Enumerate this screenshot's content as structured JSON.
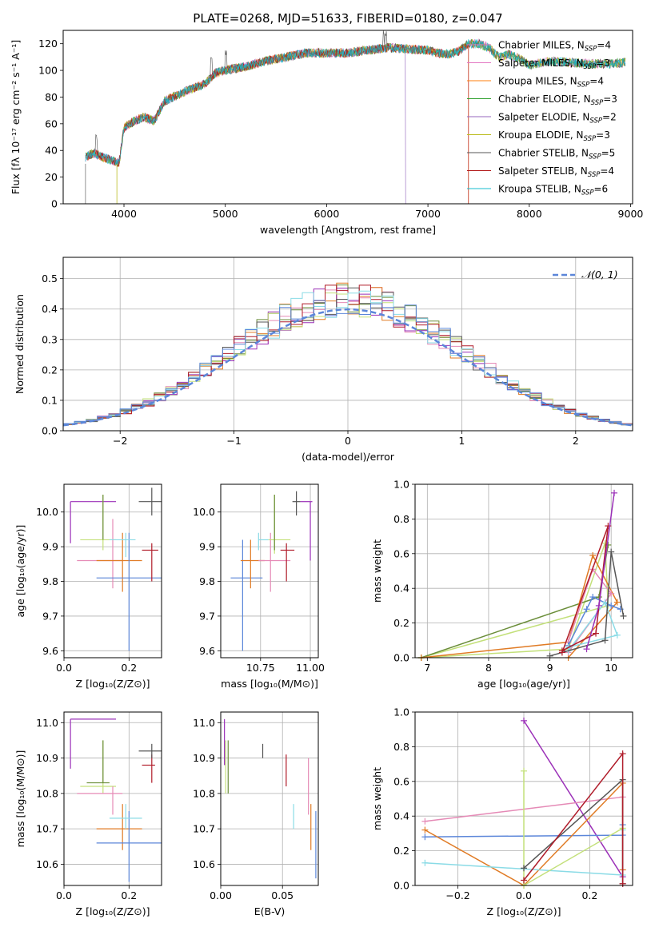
{
  "page_title": "PLATE=0268, MJD=51633, FIBERID=0180, z=0.047",
  "colors": {
    "chabrier_miles": "#e377c2",
    "salpeter_miles": "#e377c2",
    "kroupa_miles": "#ff7f0e",
    "chabrier_elodie": "#2ca02c",
    "salpeter_elodie": "#9467bd",
    "kroupa_elodie": "#bcbd22",
    "chabrier_stelib": "#555555",
    "salpeter_stelib": "#b21a1a",
    "kroupa_stelib": "#17becf",
    "ssp_purple": "#9b30b8",
    "ssp_blue": "#5b86d9",
    "ssp_orange": "#e07b25",
    "ssp_pink": "#e58ab6",
    "ssp_lime": "#c3e07a",
    "ssp_red": "#b01c2a",
    "ssp_cyan": "#8adbe6",
    "ssp_gray": "#555555",
    "ssp_olive": "#6b8e3a",
    "normal": "#5b86d9"
  },
  "chart_data": [
    {
      "id": "spectrum",
      "type": "line",
      "title": "PLATE=0268, MJD=51633, FIBERID=0180, z=0.047",
      "xlabel": "wavelength [Angstrom, rest frame]",
      "ylabel": "Flux [fλ 10⁻¹⁷ erg cm⁻² s⁻¹ A⁻¹]",
      "xlim": [
        3400,
        9020
      ],
      "ylim": [
        0,
        130
      ],
      "xticks": [
        "4000",
        "5000",
        "6000",
        "7000",
        "8000",
        "9000"
      ],
      "yticks": [
        "0",
        "20",
        "40",
        "60",
        "80",
        "100",
        "120"
      ],
      "legend_position": "top-right",
      "legend": [
        "Chabrier MILES, N_SSP=4",
        "Salpeter MILES, N_SSP=3",
        "Kroupa MILES, N_SSP=4",
        "Chabrier ELODIE, N_SSP=3",
        "Salpeter ELODIE, N_SSP=2",
        "Kroupa ELODIE, N_SSP=3",
        "Chabrier STELIB, N_SSP=5",
        "Salpeter STELIB, N_SSP=4",
        "Kroupa STELIB, N_SSP=6"
      ],
      "legend_keys": [
        "chabrier_miles",
        "salpeter_miles",
        "kroupa_miles",
        "chabrier_elodie",
        "salpeter_elodie",
        "kroupa_elodie",
        "chabrier_stelib",
        "salpeter_stelib",
        "kroupa_stelib"
      ],
      "continuum": [
        [
          3620,
          35
        ],
        [
          3700,
          38
        ],
        [
          3800,
          35
        ],
        [
          3900,
          32
        ],
        [
          3950,
          30
        ],
        [
          4000,
          57
        ],
        [
          4100,
          62
        ],
        [
          4200,
          65
        ],
        [
          4300,
          62
        ],
        [
          4400,
          77
        ],
        [
          4600,
          84
        ],
        [
          4800,
          90
        ],
        [
          4900,
          98
        ],
        [
          5000,
          100
        ],
        [
          5200,
          103
        ],
        [
          5400,
          107
        ],
        [
          5600,
          110
        ],
        [
          5800,
          113
        ],
        [
          6000,
          113
        ],
        [
          6200,
          113
        ],
        [
          6400,
          115
        ],
        [
          6600,
          117
        ],
        [
          6800,
          116
        ],
        [
          7000,
          115
        ],
        [
          7100,
          113
        ],
        [
          7200,
          112
        ],
        [
          7300,
          114
        ],
        [
          7400,
          120
        ],
        [
          7500,
          120
        ],
        [
          7600,
          117
        ],
        [
          7700,
          110
        ],
        [
          7800,
          112
        ],
        [
          7900,
          109
        ],
        [
          8000,
          104
        ],
        [
          8200,
          107
        ],
        [
          8400,
          106
        ],
        [
          8600,
          105
        ],
        [
          8800,
          105
        ],
        [
          8950,
          106
        ]
      ]
    },
    {
      "id": "residuals",
      "type": "bar",
      "xlabel": "(data-model)/error",
      "ylabel": "Normed distribution",
      "xlim": [
        -2.5,
        2.5
      ],
      "ylim": [
        0,
        0.57
      ],
      "xticks": [
        "−2",
        "−1",
        "0",
        "1",
        "2"
      ],
      "yticks": [
        "0.0",
        "0.1",
        "0.2",
        "0.3",
        "0.4",
        "0.5"
      ],
      "legend": "𝒩(0, 1)",
      "legend_position": "top-right",
      "bin_width": 0.1
    },
    {
      "id": "z_age",
      "type": "scatter",
      "xlabel": "Z [log₁₀(Z/Z⊙)]",
      "ylabel": "age  [log₁₀(age/yr)]",
      "xlim": [
        0,
        0.3
      ],
      "ylim": [
        9.58,
        10.08
      ],
      "xticks": [
        "0.0",
        "0.2"
      ],
      "yticks": [
        "9.6",
        "9.7",
        "9.8",
        "9.9",
        "10.0"
      ],
      "points": [
        {
          "c": "ssp_purple",
          "x": 0.02,
          "y": 10.03,
          "x0": 0.02,
          "x1": 0.16,
          "y0": 9.91,
          "y1": 10.03
        },
        {
          "c": "ssp_lime",
          "x": 0.12,
          "y": 9.92,
          "x0": 0.05,
          "x1": 0.16,
          "y0": 9.89,
          "y1": 10.05
        },
        {
          "c": "ssp_olive",
          "x": 0.12,
          "y": 9.96,
          "x0": 0.12,
          "x1": 0.12,
          "y0": 9.92,
          "y1": 10.05
        },
        {
          "c": "ssp_pink",
          "x": 0.15,
          "y": 9.86,
          "x0": 0.04,
          "x1": 0.18,
          "y0": 9.78,
          "y1": 9.98
        },
        {
          "c": "ssp_orange",
          "x": 0.18,
          "y": 9.86,
          "x0": 0.1,
          "x1": 0.24,
          "y0": 9.77,
          "y1": 9.94
        },
        {
          "c": "ssp_blue",
          "x": 0.2,
          "y": 9.81,
          "x0": 0.1,
          "x1": 0.3,
          "y0": 9.6,
          "y1": 9.94
        },
        {
          "c": "ssp_cyan",
          "x": 0.19,
          "y": 9.92,
          "x0": 0.14,
          "x1": 0.22,
          "y0": 9.87,
          "y1": 9.94
        },
        {
          "c": "ssp_red",
          "x": 0.27,
          "y": 9.89,
          "x0": 0.24,
          "x1": 0.29,
          "y0": 9.8,
          "y1": 9.91
        },
        {
          "c": "ssp_gray",
          "x": 0.27,
          "y": 10.03,
          "x0": 0.23,
          "x1": 0.3,
          "y0": 9.99,
          "y1": 10.07
        }
      ]
    },
    {
      "id": "mass_age",
      "type": "scatter",
      "xlabel": "mass [log₁₀(M/M⊙)]",
      "ylabel": "",
      "xlim": [
        10.55,
        11.04
      ],
      "ylim": [
        9.58,
        10.08
      ],
      "xticks": [
        "10.75",
        "11.00"
      ],
      "yticks": [
        "9.6",
        "9.7",
        "9.8",
        "9.9",
        "10.0"
      ],
      "points": [
        {
          "c": "ssp_blue",
          "x": 10.66,
          "y": 9.81,
          "x0": 10.6,
          "x1": 10.76,
          "y0": 9.6,
          "y1": 9.92
        },
        {
          "c": "ssp_orange",
          "x": 10.7,
          "y": 9.86,
          "x0": 10.65,
          "x1": 10.77,
          "y0": 9.78,
          "y1": 9.92
        },
        {
          "c": "ssp_pink",
          "x": 10.8,
          "y": 9.86,
          "x0": 10.74,
          "x1": 10.9,
          "y0": 9.77,
          "y1": 9.94
        },
        {
          "c": "ssp_cyan",
          "x": 10.74,
          "y": 9.92,
          "x0": 10.74,
          "x1": 10.79,
          "y0": 9.89,
          "y1": 9.94
        },
        {
          "c": "ssp_lime",
          "x": 10.82,
          "y": 9.92,
          "x0": 10.79,
          "x1": 10.9,
          "y0": 9.88,
          "y1": 10.05
        },
        {
          "c": "ssp_olive",
          "x": 10.82,
          "y": 9.97,
          "x0": 10.82,
          "x1": 10.82,
          "y0": 9.89,
          "y1": 10.05
        },
        {
          "c": "ssp_red",
          "x": 10.88,
          "y": 9.89,
          "x0": 10.85,
          "x1": 10.92,
          "y0": 9.8,
          "y1": 9.91
        },
        {
          "c": "ssp_gray",
          "x": 10.93,
          "y": 10.03,
          "x0": 10.91,
          "x1": 10.95,
          "y0": 9.99,
          "y1": 10.06
        },
        {
          "c": "ssp_purple",
          "x": 11.0,
          "y": 10.03,
          "x0": 10.95,
          "x1": 11.01,
          "y0": 9.86,
          "y1": 10.03
        }
      ]
    },
    {
      "id": "age_weight",
      "type": "line",
      "xlabel": "age  [log₁₀(age/yr)]",
      "ylabel": "mass weight",
      "xlim": [
        6.8,
        10.35
      ],
      "ylim": [
        0,
        1.0
      ],
      "xticks": [
        "7",
        "8",
        "9",
        "10"
      ],
      "yticks": [
        "0.0",
        "0.2",
        "0.4",
        "0.6",
        "0.8",
        "1.0"
      ],
      "series": [
        {
          "c": "ssp_lime",
          "points": [
            [
              6.9,
              0.0
            ],
            [
              9.3,
              0.05
            ],
            [
              9.9,
              0.66
            ],
            [
              9.95,
              0.3
            ],
            [
              6.9,
              0.0
            ]
          ]
        },
        {
          "c": "ssp_olive",
          "points": [
            [
              6.9,
              0.0
            ],
            [
              9.8,
              0.35
            ],
            [
              9.95,
              0.65
            ]
          ]
        },
        {
          "c": "ssp_orange",
          "points": [
            [
              6.9,
              0.0
            ],
            [
              9.3,
              0.09
            ],
            [
              9.7,
              0.59
            ],
            [
              10.1,
              0.32
            ],
            [
              9.3,
              0.0
            ]
          ]
        },
        {
          "c": "ssp_pink",
          "points": [
            [
              9.3,
              0.09
            ],
            [
              9.7,
              0.51
            ],
            [
              10.0,
              0.37
            ],
            [
              9.3,
              0.03
            ]
          ]
        },
        {
          "c": "ssp_blue",
          "points": [
            [
              9.3,
              0.07
            ],
            [
              9.6,
              0.28
            ],
            [
              9.7,
              0.35
            ],
            [
              10.0,
              0.3
            ],
            [
              10.15,
              0.28
            ]
          ]
        },
        {
          "c": "ssp_cyan",
          "points": [
            [
              9.3,
              0.04
            ],
            [
              9.9,
              0.32
            ],
            [
              10.1,
              0.13
            ],
            [
              9.3,
              0.06
            ]
          ]
        },
        {
          "c": "ssp_gray",
          "points": [
            [
              9.0,
              0.01
            ],
            [
              9.9,
              0.1
            ],
            [
              10.0,
              0.61
            ],
            [
              10.2,
              0.24
            ]
          ]
        },
        {
          "c": "ssp_red",
          "points": [
            [
              9.2,
              0.04
            ],
            [
              9.75,
              0.14
            ],
            [
              9.95,
              0.76
            ],
            [
              9.2,
              0.03
            ]
          ]
        },
        {
          "c": "ssp_purple",
          "points": [
            [
              9.6,
              0.05
            ],
            [
              9.8,
              0.3
            ],
            [
              10.05,
              0.95
            ]
          ]
        }
      ]
    },
    {
      "id": "z_mass",
      "type": "scatter",
      "xlabel": "Z [log₁₀(Z/Z⊙)]",
      "ylabel": "mass [log₁₀(M/M⊙)]",
      "xlim": [
        0,
        0.3
      ],
      "ylim": [
        10.54,
        11.03
      ],
      "xticks": [
        "0.0",
        "0.2"
      ],
      "yticks": [
        "10.6",
        "10.7",
        "10.8",
        "10.9",
        "11.0"
      ],
      "points": [
        {
          "c": "ssp_purple",
          "x": 0.02,
          "y": 11.01,
          "x0": 0.02,
          "x1": 0.16,
          "y0": 10.87,
          "y1": 11.01
        },
        {
          "c": "ssp_lime",
          "x": 0.12,
          "y": 10.82,
          "x0": 0.05,
          "x1": 0.16,
          "y0": 10.8,
          "y1": 10.95
        },
        {
          "c": "ssp_olive",
          "x": 0.12,
          "y": 10.83,
          "x0": 0.07,
          "x1": 0.14,
          "y0": 10.83,
          "y1": 10.95
        },
        {
          "c": "ssp_pink",
          "x": 0.15,
          "y": 10.8,
          "x0": 0.04,
          "x1": 0.18,
          "y0": 10.74,
          "y1": 10.82
        },
        {
          "c": "ssp_orange",
          "x": 0.18,
          "y": 10.7,
          "x0": 0.1,
          "x1": 0.24,
          "y0": 10.64,
          "y1": 10.77
        },
        {
          "c": "ssp_blue",
          "x": 0.2,
          "y": 10.66,
          "x0": 0.1,
          "x1": 0.3,
          "y0": 10.55,
          "y1": 10.75
        },
        {
          "c": "ssp_cyan",
          "x": 0.19,
          "y": 10.73,
          "x0": 0.14,
          "x1": 0.24,
          "y0": 10.7,
          "y1": 10.77
        },
        {
          "c": "ssp_red",
          "x": 0.27,
          "y": 10.88,
          "x0": 0.24,
          "x1": 0.28,
          "y0": 10.83,
          "y1": 10.91
        },
        {
          "c": "ssp_gray",
          "x": 0.27,
          "y": 10.92,
          "x0": 0.23,
          "x1": 0.3,
          "y0": 10.9,
          "y1": 10.94
        }
      ]
    },
    {
      "id": "ebv_mass",
      "type": "scatter",
      "xlabel": "E(B-V)",
      "ylabel": "",
      "xlim": [
        0,
        0.079
      ],
      "ylim": [
        10.54,
        11.03
      ],
      "xticks": [
        "0.00",
        "0.05"
      ],
      "yticks": [
        "10.6",
        "10.7",
        "10.8",
        "10.9",
        "11.0"
      ],
      "points": [
        {
          "c": "ssp_purple",
          "x": 0.003,
          "y": 10.95,
          "x0": 0.003,
          "x1": 0.003,
          "y0": 10.88,
          "y1": 11.01
        },
        {
          "c": "ssp_lime",
          "x": 0.004,
          "y": 10.88,
          "x0": 0.004,
          "x1": 0.004,
          "y0": 10.8,
          "y1": 10.95
        },
        {
          "c": "ssp_olive",
          "x": 0.006,
          "y": 10.88,
          "x0": 0.006,
          "x1": 0.006,
          "y0": 10.8,
          "y1": 10.95
        },
        {
          "c": "ssp_gray",
          "x": 0.034,
          "y": 10.92,
          "x0": 0.034,
          "x1": 0.034,
          "y0": 10.9,
          "y1": 10.94
        },
        {
          "c": "ssp_red",
          "x": 0.053,
          "y": 10.87,
          "x0": 0.053,
          "x1": 0.053,
          "y0": 10.82,
          "y1": 10.91
        },
        {
          "c": "ssp_cyan",
          "x": 0.059,
          "y": 10.73,
          "x0": 0.059,
          "x1": 0.059,
          "y0": 10.7,
          "y1": 10.77
        },
        {
          "c": "ssp_pink",
          "x": 0.071,
          "y": 10.8,
          "x0": 0.071,
          "x1": 0.071,
          "y0": 10.74,
          "y1": 10.9
        },
        {
          "c": "ssp_orange",
          "x": 0.073,
          "y": 10.7,
          "x0": 0.073,
          "x1": 0.073,
          "y0": 10.64,
          "y1": 10.77
        },
        {
          "c": "ssp_blue",
          "x": 0.077,
          "y": 10.66,
          "x0": 0.077,
          "x1": 0.077,
          "y0": 10.56,
          "y1": 10.75
        }
      ]
    },
    {
      "id": "z_weight",
      "type": "line",
      "xlabel": "Z [log₁₀(Z/Z⊙)]",
      "ylabel": "mass weight",
      "xlim": [
        -0.33,
        0.33
      ],
      "ylim": [
        0,
        1.0
      ],
      "xticks": [
        "−0.2",
        "0.0",
        "0.2"
      ],
      "yticks": [
        "0.0",
        "0.2",
        "0.4",
        "0.6",
        "0.8",
        "1.0"
      ],
      "series": [
        {
          "c": "ssp_purple",
          "points": [
            [
              0.0,
              0.95
            ],
            [
              0.3,
              0.05
            ]
          ]
        },
        {
          "c": "ssp_pink",
          "points": [
            [
              -0.3,
              0.37
            ],
            [
              0.3,
              0.51
            ],
            [
              0.3,
              0.09
            ]
          ]
        },
        {
          "c": "ssp_blue",
          "points": [
            [
              -0.3,
              0.28
            ],
            [
              0.3,
              0.29
            ],
            [
              0.3,
              0.35
            ]
          ]
        },
        {
          "c": "ssp_orange",
          "points": [
            [
              -0.3,
              0.32
            ],
            [
              0.0,
              0.0
            ],
            [
              0.3,
              0.59
            ],
            [
              0.3,
              0.09
            ]
          ]
        },
        {
          "c": "ssp_cyan",
          "points": [
            [
              -0.3,
              0.13
            ],
            [
              0.3,
              0.06
            ],
            [
              0.3,
              0.32
            ]
          ]
        },
        {
          "c": "ssp_lime",
          "points": [
            [
              0.0,
              0.66
            ],
            [
              0.0,
              0.0
            ],
            [
              0.3,
              0.33
            ]
          ]
        },
        {
          "c": "ssp_gray",
          "points": [
            [
              0.0,
              0.1
            ],
            [
              0.3,
              0.61
            ],
            [
              0.3,
              0.01
            ]
          ]
        },
        {
          "c": "ssp_red",
          "points": [
            [
              0.0,
              0.03
            ],
            [
              0.3,
              0.76
            ],
            [
              0.3,
              0.01
            ]
          ]
        }
      ]
    }
  ]
}
